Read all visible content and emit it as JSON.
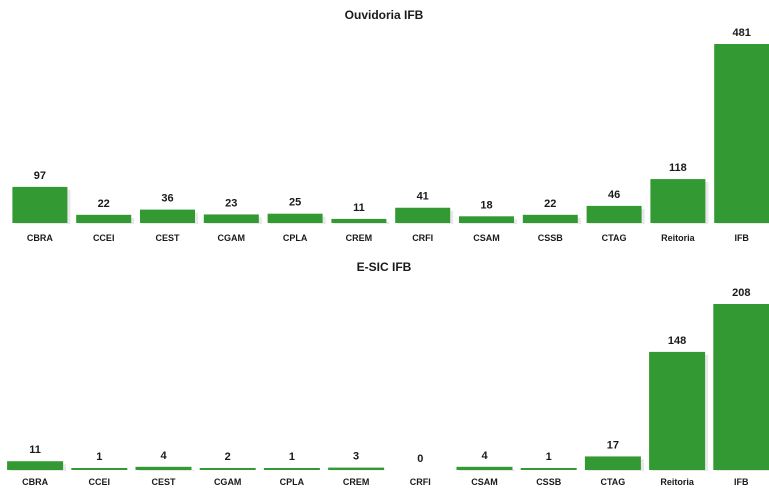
{
  "chart_data": [
    {
      "type": "bar",
      "title": "Ouvidoria IFB",
      "categories": [
        "CBRA",
        "CCEI",
        "CEST",
        "CGAM",
        "CPLA",
        "CREM",
        "CRFI",
        "CSAM",
        "CSSB",
        "CTAG",
        "Reitoria",
        "IFB"
      ],
      "values": [
        97,
        22,
        36,
        23,
        25,
        11,
        41,
        18,
        22,
        46,
        118,
        481
      ],
      "ylim": [
        0,
        481
      ],
      "grid": false,
      "bar_color": "#339933"
    },
    {
      "type": "bar",
      "title": "E-SIC IFB",
      "categories": [
        "CBRA",
        "CCEI",
        "CEST",
        "CGAM",
        "CPLA",
        "CREM",
        "CRFI",
        "CSAM",
        "CSSB",
        "CTAG",
        "Reitoria",
        "IFB"
      ],
      "values": [
        11,
        1,
        4,
        2,
        1,
        3,
        0,
        4,
        1,
        17,
        148,
        208
      ],
      "ylim": [
        0,
        208
      ],
      "grid": false,
      "bar_color": "#339933"
    }
  ]
}
